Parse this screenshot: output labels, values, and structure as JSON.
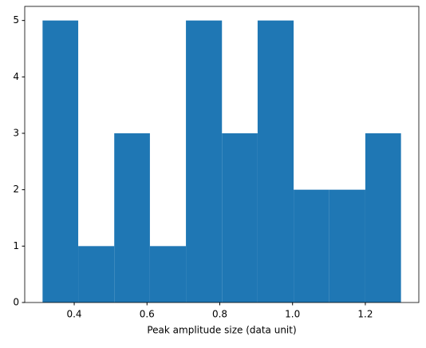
{
  "chart_data": {
    "type": "histogram",
    "x_label": "Peak amplitude size (data unit)",
    "bins": [
      0.313,
      0.411,
      0.51,
      0.608,
      0.707,
      0.806,
      0.904,
      1.003,
      1.101,
      1.2,
      1.298
    ],
    "values": [
      5,
      1,
      3,
      1,
      5,
      3,
      5,
      2,
      2,
      3
    ],
    "color": "#1f77b4",
    "xlim": [
      0.264,
      1.347
    ],
    "xticks": [
      0.4,
      0.6,
      0.8,
      {
        "value": 1.0,
        "label": "1.0"
      },
      1.2
    ],
    "ylim": [
      0,
      5.25
    ],
    "yticks": [
      0,
      1,
      2,
      3,
      4,
      5
    ],
    "grid": false
  }
}
